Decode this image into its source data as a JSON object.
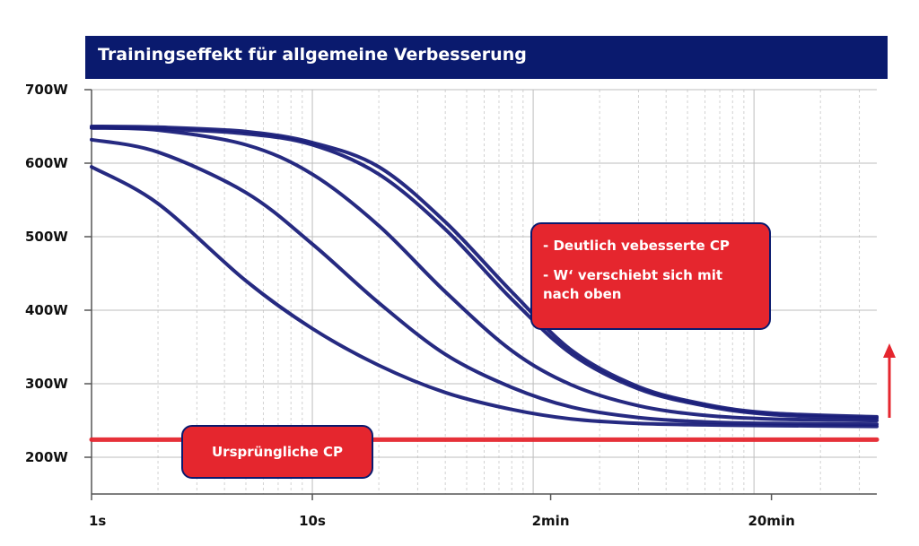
{
  "chart_data": {
    "type": "line",
    "title": "Trainingseffekt für allgemeine Verbesserung",
    "x_scale": "log",
    "x_unit": "seconds",
    "xlim": [
      1,
      3600
    ],
    "ylim": [
      150,
      700
    ],
    "yticks": [
      200,
      300,
      400,
      500,
      600,
      700
    ],
    "ytick_labels": [
      "200W",
      "300W",
      "400W",
      "500W",
      "600W",
      "700W"
    ],
    "xticks": [
      1,
      10,
      120,
      1200
    ],
    "xtick_labels": [
      "1s",
      "10s",
      "2min",
      "20min"
    ],
    "grid": true,
    "series": [
      {
        "color": "#1a1f7a",
        "x": [
          1,
          2,
          5,
          10,
          20,
          40,
          80,
          150,
          300,
          600,
          1200,
          3600
        ],
        "y": [
          595,
          545,
          440,
          375,
          325,
          288,
          265,
          252,
          246,
          244,
          243,
          242
        ]
      },
      {
        "color": "#1a1f7a",
        "x": [
          1,
          2,
          5,
          10,
          20,
          40,
          80,
          150,
          300,
          600,
          1200,
          3600
        ],
        "y": [
          632,
          615,
          560,
          490,
          410,
          340,
          295,
          268,
          254,
          248,
          246,
          245
        ]
      },
      {
        "color": "#1a1f7a",
        "x": [
          1,
          2,
          5,
          10,
          20,
          40,
          80,
          150,
          300,
          600,
          1200,
          3600
        ],
        "y": [
          648,
          645,
          625,
          585,
          515,
          425,
          345,
          298,
          270,
          257,
          252,
          250
        ]
      },
      {
        "color": "#1a1f7a",
        "x": [
          1,
          2,
          5,
          10,
          20,
          40,
          80,
          150,
          300,
          600,
          1200,
          3600
        ],
        "y": [
          650,
          649,
          643,
          628,
          595,
          520,
          425,
          345,
          296,
          272,
          260,
          255
        ]
      },
      {
        "color": "#1a1f7a",
        "x": [
          1,
          2,
          5,
          10,
          20,
          40,
          80,
          150,
          300,
          600,
          1200,
          3600
        ],
        "y": [
          648,
          647,
          640,
          625,
          585,
          510,
          415,
          340,
          293,
          270,
          258,
          253
        ]
      },
      {
        "color": "#e5262e",
        "x": [
          1,
          3600
        ],
        "y": [
          224,
          224
        ]
      }
    ],
    "annotations": [
      {
        "lines": [
          "- Deutlich vebesserte CP",
          "- W‘ verschiebt sich mit nach oben"
        ]
      },
      {
        "text": "Ursprüngliche CP"
      }
    ],
    "accent_colors": {
      "title_bg": "#0a1a6e",
      "curve": "#1a1f7a",
      "cp": "#e5262e"
    }
  }
}
